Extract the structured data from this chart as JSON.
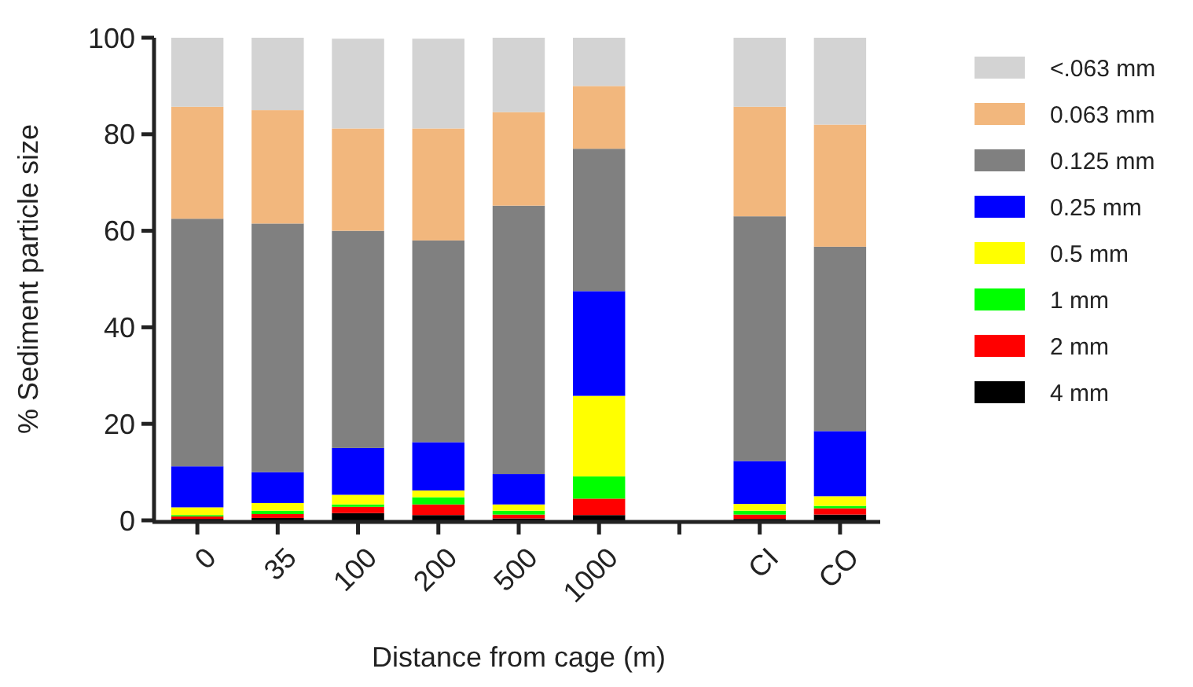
{
  "chart_data": {
    "type": "bar",
    "stacked": true,
    "xlabel": "Distance from cage (m)",
    "ylabel": "% Sediment particle size",
    "categories": [
      "0",
      "35",
      "100",
      "200",
      "500",
      "1000",
      null,
      "CI",
      "CO"
    ],
    "series": [
      {
        "name": "4 mm",
        "color": "#000000",
        "values": [
          0.3,
          0.5,
          1.5,
          1.1,
          0.4,
          1.1,
          null,
          0.3,
          1.2
        ]
      },
      {
        "name": "2 mm",
        "color": "#ff0000",
        "values": [
          0.5,
          0.8,
          1.3,
          2.2,
          0.8,
          3.4,
          null,
          0.9,
          1.3
        ]
      },
      {
        "name": "1 mm",
        "color": "#00ff00",
        "values": [
          0.3,
          0.7,
          0.5,
          1.5,
          0.8,
          4.6,
          null,
          0.8,
          0.5
        ]
      },
      {
        "name": "0.5 mm",
        "color": "#ffff00",
        "values": [
          1.6,
          1.6,
          2.0,
          1.4,
          1.3,
          16.7,
          null,
          1.4,
          2.0
        ]
      },
      {
        "name": "0.25 mm",
        "color": "#0000ff",
        "values": [
          8.5,
          6.4,
          9.7,
          10.0,
          6.3,
          21.7,
          null,
          8.9,
          13.5
        ]
      },
      {
        "name": "0.125 mm",
        "color": "#808080",
        "values": [
          51.3,
          51.5,
          45.0,
          41.8,
          55.6,
          29.5,
          null,
          50.7,
          38.2
        ]
      },
      {
        "name": "0.063 mm",
        "color": "#f2b77d",
        "values": [
          23.2,
          23.5,
          21.2,
          23.2,
          19.4,
          13.0,
          null,
          22.7,
          25.3
        ]
      },
      {
        "name": "<.063 mm",
        "color": "#d3d3d3",
        "values": [
          14.3,
          15.0,
          18.6,
          18.6,
          15.4,
          10.0,
          null,
          14.3,
          18.0
        ]
      }
    ],
    "ylim": [
      0,
      100
    ],
    "yticks": [
      0,
      20,
      40,
      60,
      80,
      100
    ],
    "grid": false,
    "legend": "right"
  }
}
